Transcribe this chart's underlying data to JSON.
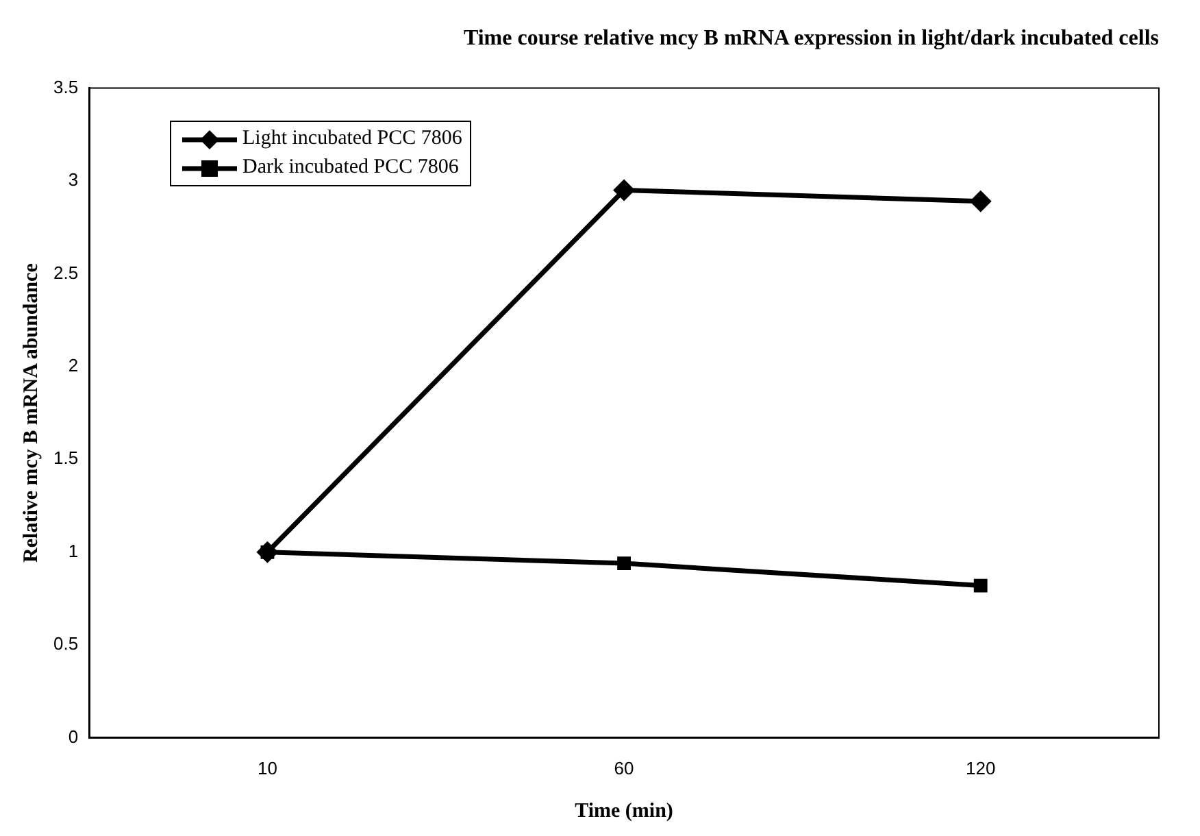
{
  "chart_data": {
    "type": "line",
    "title": "Time course relative mcy B mRNA expression in light/dark incubated cells",
    "xlabel": "Time (min)",
    "ylabel": "Relative mcy B mRNA abundance",
    "categories": [
      "10",
      "60",
      "120"
    ],
    "series": [
      {
        "name": "Light incubated PCC 7806",
        "color": "#000000",
        "marker": "diamond",
        "values": [
          1,
          2.95,
          2.89
        ]
      },
      {
        "name": "Dark incubated PCC 7806",
        "color": "#000000",
        "marker": "square",
        "values": [
          1,
          0.94,
          0.82
        ]
      }
    ],
    "ylim": [
      0,
      3.5
    ],
    "yticks": [
      0,
      0.5,
      1,
      1.5,
      2,
      2.5,
      3,
      3.5
    ],
    "grid": false,
    "legend": "top left",
    "line_style": "solid"
  }
}
